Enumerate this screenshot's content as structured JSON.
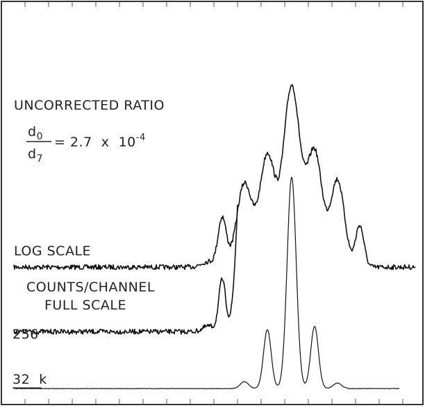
{
  "heading": "UNCORRECTED RATIO",
  "formula": {
    "numerator": "d",
    "numerator_sub": "0",
    "denominator": "d",
    "denominator_sub": "7",
    "rhs": "= 2.7  x  10",
    "exponent": "-4"
  },
  "labels": {
    "log_scale": "LOG SCALE",
    "counts_line1": "COUNTS/CHANNEL",
    "counts_line2": "FULL SCALE",
    "scale_256": "256",
    "scale_32k": "32  k"
  }
}
